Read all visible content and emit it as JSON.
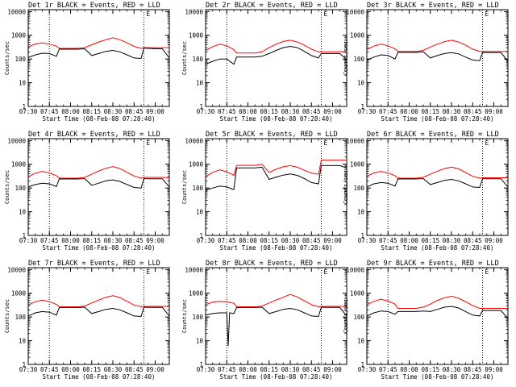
{
  "figure": {
    "x_axis_label": "Start Time (08-Feb-08 07:28:40)",
    "y_axis_label": "Counts/sec",
    "x_ticks": [
      "07:30",
      "07:45",
      "08:00",
      "08:15",
      "08:30",
      "08:45",
      "09:00"
    ],
    "y_ticks": [
      "1",
      "10",
      "100",
      "1000",
      "10000"
    ],
    "corner_marker": "E",
    "series_colors": {
      "events": "#000000",
      "lld": "#ff0000"
    }
  },
  "chart_data": [
    {
      "type": "line",
      "title": "Det 1r BLACK = Events, RED = LLD",
      "xlabel": "Start Time (08-Feb-08 07:28:40)",
      "ylabel": "Counts/sec",
      "x_unit": "minutes after 07:30",
      "xlim": [
        0,
        100
      ],
      "ylim": [
        1,
        12000
      ],
      "yscale": "log",
      "vlines": [
        15,
        82
      ],
      "series": [
        {
          "name": "BLACK = Events",
          "x": [
            0,
            5,
            10,
            15,
            20,
            22,
            25,
            30,
            35,
            40,
            45,
            50,
            55,
            60,
            65,
            70,
            75,
            80,
            82,
            85,
            90,
            95,
            100
          ],
          "values": [
            115,
            150,
            175,
            170,
            130,
            260,
            260,
            260,
            260,
            270,
            140,
            170,
            210,
            230,
            200,
            150,
            110,
            105,
            290,
            280,
            270,
            270,
            110
          ]
        },
        {
          "name": "RED = LLD",
          "x": [
            0,
            5,
            10,
            15,
            20,
            22,
            25,
            30,
            35,
            40,
            45,
            50,
            55,
            60,
            65,
            70,
            75,
            80,
            82,
            85,
            90,
            95,
            100
          ],
          "values": [
            320,
            430,
            480,
            420,
            350,
            280,
            280,
            280,
            280,
            300,
            400,
            520,
            650,
            780,
            650,
            480,
            340,
            280,
            300,
            300,
            300,
            300,
            300
          ]
        }
      ]
    },
    {
      "type": "line",
      "title": "Det 2r BLACK = Events, RED = LLD",
      "xlabel": "Start Time (08-Feb-08 07:28:40)",
      "ylabel": "Counts/sec",
      "x_unit": "minutes after 07:30",
      "xlim": [
        0,
        100
      ],
      "ylim": [
        1,
        12000
      ],
      "yscale": "log",
      "vlines": [
        15,
        82
      ],
      "series": [
        {
          "name": "BLACK = Events",
          "x": [
            0,
            5,
            10,
            15,
            20,
            22,
            25,
            30,
            35,
            40,
            45,
            50,
            55,
            60,
            65,
            70,
            75,
            80,
            82,
            85,
            90,
            95,
            100
          ],
          "values": [
            60,
            80,
            100,
            100,
            60,
            120,
            120,
            120,
            120,
            130,
            170,
            230,
            300,
            340,
            300,
            210,
            140,
            110,
            170,
            170,
            170,
            170,
            95
          ]
        },
        {
          "name": "RED = LLD",
          "x": [
            0,
            5,
            10,
            15,
            20,
            22,
            25,
            30,
            35,
            40,
            45,
            50,
            55,
            60,
            65,
            70,
            75,
            80,
            82,
            85,
            90,
            95,
            100
          ],
          "values": [
            230,
            330,
            420,
            360,
            250,
            180,
            180,
            180,
            180,
            200,
            300,
            420,
            550,
            620,
            520,
            380,
            260,
            200,
            200,
            200,
            200,
            200,
            210
          ]
        }
      ]
    },
    {
      "type": "line",
      "title": "Det 3r BLACK = Events, RED = LLD",
      "xlabel": "Start Time (08-Feb-08 07:28:40)",
      "ylabel": "Counts/sec",
      "x_unit": "minutes after 07:30",
      "xlim": [
        0,
        100
      ],
      "ylim": [
        1,
        12000
      ],
      "yscale": "log",
      "vlines": [
        15,
        82
      ],
      "series": [
        {
          "name": "BLACK = Events",
          "x": [
            0,
            5,
            10,
            15,
            20,
            22,
            25,
            30,
            35,
            40,
            45,
            50,
            55,
            60,
            65,
            70,
            75,
            80,
            82,
            85,
            90,
            95,
            100
          ],
          "values": [
            90,
            120,
            150,
            140,
            100,
            190,
            190,
            190,
            190,
            200,
            110,
            140,
            170,
            185,
            165,
            120,
            90,
            85,
            190,
            185,
            185,
            185,
            80
          ]
        },
        {
          "name": "RED = LLD",
          "x": [
            0,
            5,
            10,
            15,
            20,
            22,
            25,
            30,
            35,
            40,
            45,
            50,
            55,
            60,
            65,
            70,
            75,
            80,
            82,
            85,
            90,
            95,
            100
          ],
          "values": [
            250,
            350,
            420,
            360,
            270,
            210,
            210,
            210,
            210,
            230,
            320,
            420,
            540,
            620,
            520,
            380,
            260,
            210,
            210,
            210,
            210,
            210,
            210
          ]
        }
      ]
    },
    {
      "type": "line",
      "title": "Det 4r BLACK = Events, RED = LLD",
      "xlabel": "Start Time (08-Feb-08 07:28:40)",
      "ylabel": "Counts/sec",
      "x_unit": "minutes after 07:30",
      "xlim": [
        0,
        100
      ],
      "ylim": [
        1,
        12000
      ],
      "yscale": "log",
      "vlines": [
        15,
        82
      ],
      "series": [
        {
          "name": "BLACK = Events",
          "x": [
            0,
            5,
            10,
            15,
            20,
            22,
            25,
            30,
            35,
            40,
            45,
            50,
            55,
            60,
            65,
            70,
            75,
            80,
            82,
            85,
            90,
            95,
            100
          ],
          "values": [
            110,
            140,
            160,
            150,
            115,
            240,
            240,
            240,
            240,
            250,
            130,
            160,
            200,
            220,
            190,
            140,
            105,
            100,
            250,
            245,
            245,
            245,
            110
          ]
        },
        {
          "name": "RED = LLD",
          "x": [
            0,
            5,
            10,
            15,
            20,
            22,
            25,
            30,
            35,
            40,
            45,
            50,
            55,
            60,
            65,
            70,
            75,
            80,
            82,
            85,
            90,
            95,
            100
          ],
          "values": [
            300,
            420,
            500,
            430,
            330,
            260,
            260,
            260,
            260,
            280,
            380,
            520,
            680,
            800,
            660,
            460,
            320,
            260,
            280,
            280,
            280,
            280,
            270
          ]
        }
      ]
    },
    {
      "type": "line",
      "title": "Det 5r BLACK = Events, RED = LLD",
      "xlabel": "Start Time (08-Feb-08 07:28:40)",
      "ylabel": "Counts/sec",
      "x_unit": "minutes after 07:30",
      "xlim": [
        0,
        100
      ],
      "ylim": [
        1,
        12000
      ],
      "yscale": "log",
      "vlines": [
        15,
        82
      ],
      "series": [
        {
          "name": "BLACK = Events",
          "x": [
            0,
            5,
            10,
            15,
            20,
            22,
            25,
            30,
            35,
            40,
            45,
            50,
            55,
            60,
            65,
            70,
            75,
            80,
            82,
            85,
            90,
            95,
            100
          ],
          "values": [
            80,
            100,
            120,
            110,
            85,
            700,
            700,
            700,
            700,
            750,
            230,
            290,
            350,
            390,
            340,
            250,
            170,
            150,
            900,
            880,
            880,
            880,
            700
          ]
        },
        {
          "name": "RED = LLD",
          "x": [
            0,
            5,
            10,
            15,
            20,
            22,
            25,
            30,
            35,
            40,
            45,
            50,
            55,
            60,
            65,
            70,
            75,
            80,
            82,
            85,
            90,
            95,
            100
          ],
          "values": [
            300,
            450,
            580,
            480,
            340,
            900,
            900,
            900,
            900,
            1000,
            450,
            620,
            780,
            880,
            750,
            560,
            420,
            380,
            1500,
            1500,
            1500,
            1500,
            1500
          ]
        }
      ]
    },
    {
      "type": "line",
      "title": "Det 6r BLACK = Events, RED = LLD",
      "xlabel": "Start Time (08-Feb-08 07:28:40)",
      "ylabel": "Counts/sec",
      "x_unit": "minutes after 07:30",
      "xlim": [
        0,
        100
      ],
      "ylim": [
        1,
        12000
      ],
      "yscale": "log",
      "vlines": [
        15,
        82
      ],
      "series": [
        {
          "name": "BLACK = Events",
          "x": [
            0,
            5,
            10,
            15,
            20,
            22,
            25,
            30,
            35,
            40,
            45,
            50,
            55,
            60,
            65,
            70,
            75,
            80,
            82,
            85,
            90,
            95,
            100
          ],
          "values": [
            110,
            150,
            170,
            160,
            120,
            240,
            240,
            240,
            240,
            250,
            140,
            170,
            210,
            230,
            200,
            150,
            110,
            105,
            250,
            245,
            245,
            245,
            110
          ]
        },
        {
          "name": "RED = LLD",
          "x": [
            0,
            5,
            10,
            15,
            20,
            22,
            25,
            30,
            35,
            40,
            45,
            50,
            55,
            60,
            65,
            70,
            75,
            80,
            82,
            85,
            90,
            95,
            100
          ],
          "values": [
            310,
            430,
            500,
            430,
            330,
            260,
            260,
            260,
            260,
            280,
            380,
            510,
            660,
            760,
            640,
            450,
            310,
            260,
            270,
            270,
            270,
            270,
            270
          ]
        }
      ]
    },
    {
      "type": "line",
      "title": "Det 7r BLACK = Events, RED = LLD",
      "xlabel": "Start Time (08-Feb-08 07:28:40)",
      "ylabel": "Counts/sec",
      "x_unit": "minutes after 07:30",
      "xlim": [
        0,
        100
      ],
      "ylim": [
        1,
        12000
      ],
      "yscale": "log",
      "vlines": [
        15,
        82
      ],
      "series": [
        {
          "name": "BLACK = Events",
          "x": [
            0,
            5,
            10,
            15,
            20,
            22,
            25,
            30,
            35,
            40,
            45,
            50,
            55,
            60,
            65,
            70,
            75,
            80,
            82,
            85,
            90,
            95,
            100
          ],
          "values": [
            110,
            150,
            170,
            160,
            120,
            250,
            250,
            250,
            250,
            260,
            140,
            170,
            210,
            230,
            200,
            150,
            110,
            105,
            260,
            255,
            255,
            255,
            110
          ]
        },
        {
          "name": "RED = LLD",
          "x": [
            0,
            5,
            10,
            15,
            20,
            22,
            25,
            30,
            35,
            40,
            45,
            50,
            55,
            60,
            65,
            70,
            75,
            80,
            82,
            85,
            90,
            95,
            100
          ],
          "values": [
            320,
            440,
            510,
            440,
            340,
            270,
            270,
            270,
            270,
            290,
            390,
            520,
            680,
            790,
            660,
            460,
            320,
            270,
            280,
            280,
            280,
            280,
            280
          ]
        }
      ]
    },
    {
      "type": "line",
      "title": "Det 8r BLACK = Events, RED = LLD",
      "xlabel": "Start Time (08-Feb-08 07:28:40)",
      "ylabel": "Counts/sec",
      "x_unit": "minutes after 07:30",
      "xlim": [
        0,
        100
      ],
      "ylim": [
        1,
        12000
      ],
      "yscale": "log",
      "vlines": [
        15,
        82
      ],
      "series": [
        {
          "name": "BLACK = Events",
          "x": [
            0,
            5,
            10,
            14,
            15,
            16,
            17,
            20,
            22,
            25,
            30,
            35,
            40,
            45,
            50,
            55,
            60,
            65,
            70,
            75,
            80,
            82,
            85,
            90,
            95,
            100
          ],
          "values": [
            120,
            140,
            150,
            150,
            150,
            6,
            150,
            140,
            250,
            250,
            250,
            250,
            260,
            140,
            170,
            210,
            230,
            200,
            150,
            110,
            105,
            260,
            255,
            255,
            255,
            110
          ]
        },
        {
          "name": "RED = LLD",
          "x": [
            0,
            5,
            10,
            15,
            20,
            22,
            25,
            30,
            35,
            40,
            45,
            50,
            55,
            60,
            65,
            70,
            75,
            80,
            82,
            85,
            90,
            95,
            100
          ],
          "values": [
            330,
            420,
            460,
            440,
            380,
            270,
            270,
            270,
            270,
            290,
            390,
            520,
            680,
            900,
            700,
            480,
            330,
            270,
            280,
            280,
            280,
            280,
            280
          ]
        }
      ]
    },
    {
      "type": "line",
      "title": "Det 9r BLACK = Events, RED = LLD",
      "xlabel": "Start Time (08-Feb-08 07:28:40)",
      "ylabel": "Counts/sec",
      "x_unit": "minutes after 07:30",
      "xlim": [
        0,
        100
      ],
      "ylim": [
        1,
        12000
      ],
      "yscale": "log",
      "vlines": [
        15,
        82
      ],
      "series": [
        {
          "name": "BLACK = Events",
          "x": [
            0,
            5,
            10,
            15,
            20,
            22,
            25,
            30,
            35,
            40,
            45,
            50,
            55,
            60,
            65,
            70,
            75,
            80,
            82,
            85,
            90,
            95,
            100
          ],
          "values": [
            110,
            150,
            180,
            170,
            130,
            170,
            170,
            170,
            170,
            180,
            170,
            210,
            260,
            280,
            240,
            170,
            120,
            110,
            190,
            185,
            185,
            185,
            90
          ]
        },
        {
          "name": "RED = LLD",
          "x": [
            0,
            5,
            10,
            15,
            20,
            22,
            25,
            30,
            35,
            40,
            45,
            50,
            55,
            60,
            65,
            70,
            75,
            80,
            82,
            85,
            90,
            95,
            100
          ],
          "values": [
            330,
            460,
            560,
            470,
            350,
            230,
            230,
            230,
            230,
            260,
            350,
            500,
            650,
            750,
            620,
            440,
            300,
            230,
            230,
            230,
            230,
            230,
            230
          ]
        }
      ]
    }
  ]
}
